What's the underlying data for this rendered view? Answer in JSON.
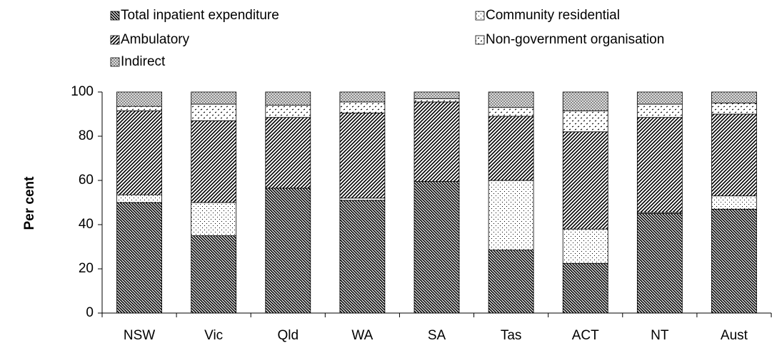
{
  "chart_data": {
    "type": "stacked-bar",
    "y_label": "Per cent",
    "categories": [
      "NSW",
      "Vic",
      "Qld",
      "WA",
      "SA",
      "Tas",
      "ACT",
      "NT",
      "Aust"
    ],
    "series": [
      {
        "name": "Total inpatient expenditure",
        "color": "#000000",
        "pattern": "dense-backward-hatch",
        "values": [
          50,
          35,
          56.5,
          51,
          59.5,
          28.5,
          22.5,
          45,
          47
        ]
      },
      {
        "name": "Community residential",
        "color": "#000000",
        "pattern": "fine-dots",
        "values": [
          3.5,
          15,
          0,
          1,
          0,
          31.5,
          15.5,
          0.5,
          6
        ]
      },
      {
        "name": "Ambulatory",
        "color": "#000000",
        "pattern": "forward-hatch",
        "values": [
          38,
          37,
          32,
          38.5,
          36,
          29,
          44,
          43,
          37
        ]
      },
      {
        "name": "Non-government organisation",
        "color": "#000000",
        "pattern": "sparse-dashes",
        "values": [
          2,
          7.5,
          5.5,
          5,
          1.5,
          4,
          9.5,
          6,
          5
        ]
      },
      {
        "name": "Indirect",
        "color": "#808080",
        "pattern": "crosshatch",
        "values": [
          6.5,
          5.5,
          6,
          4.5,
          3,
          7,
          8.5,
          5.5,
          5
        ]
      }
    ],
    "ylim": [
      0,
      100
    ],
    "yticks": [
      0,
      20,
      40,
      60,
      80,
      100
    ],
    "grid": false
  }
}
